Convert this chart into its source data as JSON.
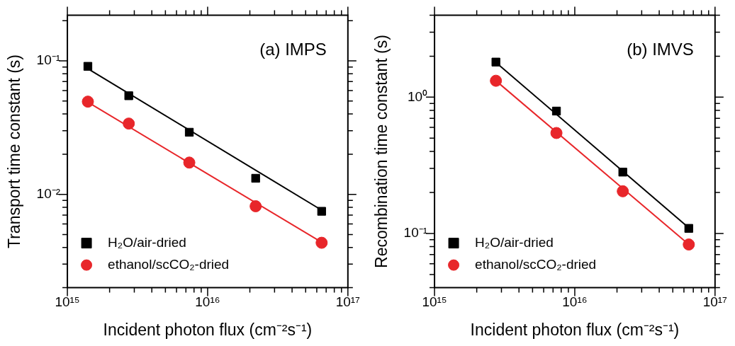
{
  "chart_data": [
    {
      "type": "scatter",
      "xlabel": "Incident photon flux (cm⁻²s⁻¹)",
      "ylabel": "Transport time constant (s)",
      "annotations": [
        "(a) IMPS"
      ],
      "log": "xy",
      "legend": "bottom left",
      "grid": false,
      "xlim": [
        1000000000000000.0,
        1e+17
      ],
      "ylim": [
        0.002,
        0.22
      ],
      "xticks": [
        {
          "value": 1000000000000000.0,
          "label": "10¹⁵"
        },
        {
          "value": 2000000000000000.0,
          "label": null
        },
        {
          "value": 3000000000000000.0,
          "label": null
        },
        {
          "value": 4000000000000000.0,
          "label": null
        },
        {
          "value": 5000000000000000.0,
          "label": null
        },
        {
          "value": 6000000000000000.0,
          "label": null
        },
        {
          "value": 7000000000000000.0,
          "label": null
        },
        {
          "value": 8000000000000000.0,
          "label": null
        },
        {
          "value": 9000000000000000.0,
          "label": null
        },
        {
          "value": 1e+16,
          "label": "10¹⁶"
        },
        {
          "value": 2e+16,
          "label": null
        },
        {
          "value": 3e+16,
          "label": null
        },
        {
          "value": 4e+16,
          "label": null
        },
        {
          "value": 5e+16,
          "label": null
        },
        {
          "value": 6e+16,
          "label": null
        },
        {
          "value": 7e+16,
          "label": null
        },
        {
          "value": 8e+16,
          "label": null
        },
        {
          "value": 9e+16,
          "label": null
        },
        {
          "value": 1e+17,
          "label": "10¹⁷"
        }
      ],
      "yticks": [
        {
          "value": 0.002,
          "label": null
        },
        {
          "value": 0.003,
          "label": null
        },
        {
          "value": 0.004,
          "label": null
        },
        {
          "value": 0.005,
          "label": null
        },
        {
          "value": 0.006,
          "label": null
        },
        {
          "value": 0.007,
          "label": null
        },
        {
          "value": 0.008,
          "label": null
        },
        {
          "value": 0.009,
          "label": null
        },
        {
          "value": 0.01,
          "label": "10⁻²"
        },
        {
          "value": 0.02,
          "label": null
        },
        {
          "value": 0.03,
          "label": null
        },
        {
          "value": 0.04,
          "label": null
        },
        {
          "value": 0.05,
          "label": null
        },
        {
          "value": 0.06,
          "label": null
        },
        {
          "value": 0.07,
          "label": null
        },
        {
          "value": 0.08,
          "label": null
        },
        {
          "value": 0.09,
          "label": null
        },
        {
          "value": 0.1,
          "label": "10⁻¹"
        },
        {
          "value": 0.2,
          "label": null
        }
      ],
      "series": [
        {
          "name": "H₂O/air-dried",
          "color": "#000000",
          "marker": "square",
          "x": [
            1400000000000000.0,
            2740000000000000.0,
            7400000000000000.0,
            2.2e+16,
            6.5e+16
          ],
          "values": [
            0.091,
            0.0548,
            0.0292,
            0.0132,
            0.00747
          ]
        },
        {
          "name": "ethanol/scCO₂-dried",
          "color": "#e8262a",
          "marker": "circle",
          "x": [
            1400000000000000.0,
            2740000000000000.0,
            7400000000000000.0,
            2.2e+16,
            6.5e+16
          ],
          "values": [
            0.0495,
            0.0339,
            0.0173,
            0.00815,
            0.00434
          ]
        },
        {
          "type": "line",
          "color": "#000000",
          "marker": "none",
          "x": [
            1400000000000000.0,
            6.5e+16
          ],
          "values": [
            0.0873,
            0.00762
          ]
        },
        {
          "type": "line",
          "color": "#e8262a",
          "marker": "none",
          "x": [
            1400000000000000.0,
            6.5e+16
          ],
          "values": [
            0.049,
            0.00438
          ]
        }
      ]
    },
    {
      "type": "scatter",
      "xlabel": "Incident photon flux (cm⁻²s⁻¹)",
      "ylabel": "Recombination time constant (s)",
      "annotations": [
        "(b) IMVS"
      ],
      "log": "xy",
      "legend": "bottom left",
      "grid": false,
      "xlim": [
        1000000000000000.0,
        1e+17
      ],
      "ylim": [
        0.04,
        4
      ],
      "xticks": [
        {
          "value": 1000000000000000.0,
          "label": "10¹⁵"
        },
        {
          "value": 2000000000000000.0,
          "label": null
        },
        {
          "value": 3000000000000000.0,
          "label": null
        },
        {
          "value": 4000000000000000.0,
          "label": null
        },
        {
          "value": 5000000000000000.0,
          "label": null
        },
        {
          "value": 6000000000000000.0,
          "label": null
        },
        {
          "value": 7000000000000000.0,
          "label": null
        },
        {
          "value": 8000000000000000.0,
          "label": null
        },
        {
          "value": 9000000000000000.0,
          "label": null
        },
        {
          "value": 1e+16,
          "label": "10¹⁶"
        },
        {
          "value": 2e+16,
          "label": null
        },
        {
          "value": 3e+16,
          "label": null
        },
        {
          "value": 4e+16,
          "label": null
        },
        {
          "value": 5e+16,
          "label": null
        },
        {
          "value": 6e+16,
          "label": null
        },
        {
          "value": 7e+16,
          "label": null
        },
        {
          "value": 8e+16,
          "label": null
        },
        {
          "value": 9e+16,
          "label": null
        },
        {
          "value": 1e+17,
          "label": "10¹⁷"
        }
      ],
      "yticks": [
        {
          "value": 0.04,
          "label": null
        },
        {
          "value": 0.05,
          "label": null
        },
        {
          "value": 0.06,
          "label": null
        },
        {
          "value": 0.07,
          "label": null
        },
        {
          "value": 0.08,
          "label": null
        },
        {
          "value": 0.09,
          "label": null
        },
        {
          "value": 0.1,
          "label": "10⁻¹"
        },
        {
          "value": 0.2,
          "label": null
        },
        {
          "value": 0.3,
          "label": null
        },
        {
          "value": 0.4,
          "label": null
        },
        {
          "value": 0.5,
          "label": null
        },
        {
          "value": 0.6,
          "label": null
        },
        {
          "value": 0.7,
          "label": null
        },
        {
          "value": 0.8,
          "label": null
        },
        {
          "value": 0.9,
          "label": null
        },
        {
          "value": 1,
          "label": "10⁰"
        },
        {
          "value": 2,
          "label": null
        },
        {
          "value": 3,
          "label": null
        },
        {
          "value": 4,
          "label": null
        }
      ],
      "series": [
        {
          "name": "H₂O/air-dried",
          "color": "#000000",
          "marker": "square",
          "x": [
            2740000000000000.0,
            7400000000000000.0,
            2.2e+16,
            6.5e+16
          ],
          "values": [
            1.81,
            0.791,
            0.282,
            0.109
          ]
        },
        {
          "name": "ethanol/scCO₂-dried",
          "color": "#e8262a",
          "marker": "circle",
          "x": [
            2740000000000000.0,
            7400000000000000.0,
            2.2e+16,
            6.5e+16
          ],
          "values": [
            1.32,
            0.546,
            0.204,
            0.083
          ]
        },
        {
          "type": "line",
          "color": "#000000",
          "marker": "none",
          "x": [
            2740000000000000.0,
            6.5e+16
          ],
          "values": [
            1.8,
            0.11
          ]
        },
        {
          "type": "line",
          "color": "#e8262a",
          "marker": "none",
          "x": [
            2740000000000000.0,
            6.5e+16
          ],
          "values": [
            1.32,
            0.083
          ]
        }
      ]
    }
  ]
}
